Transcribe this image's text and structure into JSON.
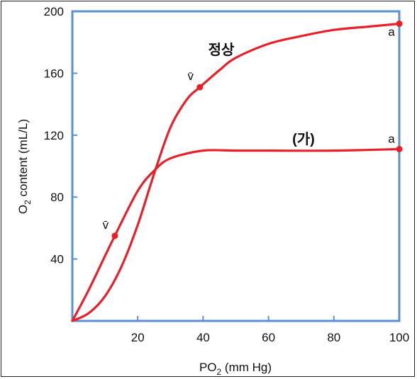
{
  "chart_data": {
    "type": "line",
    "xlabel": "PO2 (mm Hg)",
    "ylabel": "O2 content (mL/L)",
    "xlim": [
      0,
      100
    ],
    "ylim": [
      0,
      200
    ],
    "xticks": [
      "20",
      "40",
      "60",
      "80",
      "100"
    ],
    "yticks": [
      "40",
      "80",
      "120",
      "160",
      "200"
    ],
    "grid": false,
    "series": [
      {
        "name": "정상",
        "color": "#e8202a",
        "x": [
          0,
          5,
          10,
          15,
          20,
          25,
          30,
          35,
          39,
          45,
          50,
          60,
          70,
          80,
          90,
          100
        ],
        "y": [
          0,
          5,
          16,
          35,
          62,
          95,
          125,
          143,
          151,
          162,
          170,
          179,
          184,
          188,
          190,
          192
        ]
      },
      {
        "name": "(가)",
        "color": "#e8202a",
        "x": [
          0,
          5,
          10,
          13,
          20,
          25,
          30,
          40,
          50,
          60,
          80,
          100
        ],
        "y": [
          0,
          20,
          42,
          55,
          84,
          97,
          105,
          110,
          110,
          110,
          110,
          111
        ]
      }
    ],
    "points": [
      {
        "series": "정상",
        "label": "v̄",
        "x": 39,
        "y": 151
      },
      {
        "series": "정상",
        "label": "a",
        "x": 100,
        "y": 192
      },
      {
        "series": "(가)",
        "label": "v̄",
        "x": 13,
        "y": 55
      },
      {
        "series": "(가)",
        "label": "a",
        "x": 100,
        "y": 111
      }
    ],
    "axis_color": "#5b8fd6"
  }
}
